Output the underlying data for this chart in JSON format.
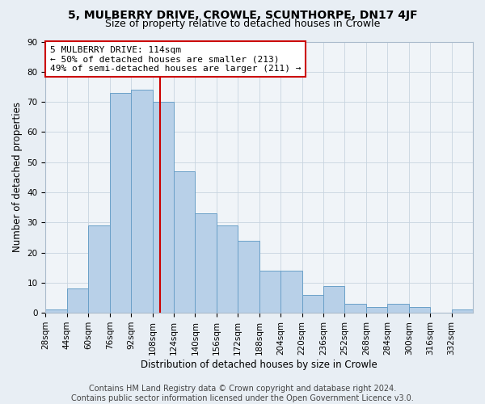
{
  "title": "5, MULBERRY DRIVE, CROWLE, SCUNTHORPE, DN17 4JF",
  "subtitle": "Size of property relative to detached houses in Crowle",
  "xlabel": "Distribution of detached houses by size in Crowle",
  "ylabel": "Number of detached properties",
  "bins": [
    28,
    44,
    60,
    76,
    92,
    108,
    124,
    140,
    156,
    172,
    188,
    204,
    220,
    236,
    252,
    268,
    284,
    300,
    316,
    332,
    348
  ],
  "counts": [
    1,
    8,
    29,
    73,
    74,
    70,
    47,
    33,
    29,
    24,
    14,
    14,
    6,
    9,
    3,
    2,
    3,
    2,
    0,
    1
  ],
  "bar_color": "#b8d0e8",
  "bar_edge_color": "#6aa0c8",
  "property_size": 114,
  "property_line_color": "#cc0000",
  "annotation_line1": "5 MULBERRY DRIVE: 114sqm",
  "annotation_line2": "← 50% of detached houses are smaller (213)",
  "annotation_line3": "49% of semi-detached houses are larger (211) →",
  "annotation_box_color": "#ffffff",
  "annotation_box_edge": "#cc0000",
  "ylim": [
    0,
    90
  ],
  "yticks": [
    0,
    10,
    20,
    30,
    40,
    50,
    60,
    70,
    80,
    90
  ],
  "bg_color": "#e8eef4",
  "plot_bg_color": "#f0f4f8",
  "grid_color": "#c8d4e0",
  "footer_text": "Contains HM Land Registry data © Crown copyright and database right 2024.\nContains public sector information licensed under the Open Government Licence v3.0.",
  "title_fontsize": 10,
  "subtitle_fontsize": 9,
  "axis_label_fontsize": 8.5,
  "tick_fontsize": 7.5,
  "annotation_fontsize": 8,
  "footer_fontsize": 7
}
